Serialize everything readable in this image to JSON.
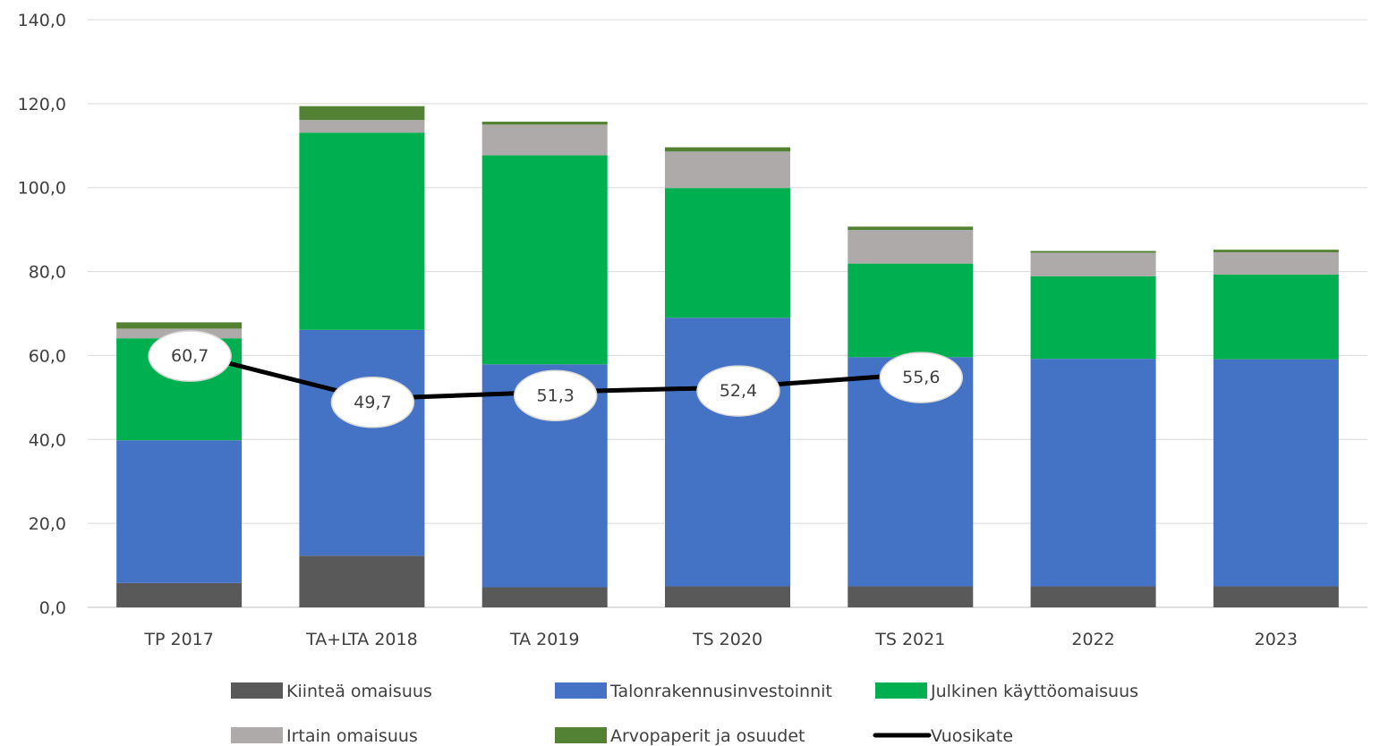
{
  "chart_data": {
    "type": "bar",
    "stacked": true,
    "categories": [
      "TP 2017",
      "TA+LTA 2018",
      "TA 2019",
      "TS 2020",
      "TS 2021",
      "2022",
      "2023"
    ],
    "ylim": [
      0,
      140
    ],
    "yticks": [
      "0,0",
      "20,0",
      "40,0",
      "60,0",
      "80,0",
      "100,0",
      "120,0",
      "140,0"
    ],
    "grid": true,
    "legend_position": "bottom",
    "series": [
      {
        "name": "Kiinteä omaisuus",
        "color": "#595959",
        "values": [
          5.8,
          12.3,
          4.8,
          5.0,
          5.0,
          5.0,
          5.0
        ]
      },
      {
        "name": "Talonrakennusinvestoinnit",
        "color": "#4472c4",
        "values": [
          34.0,
          53.8,
          53.1,
          64.0,
          54.6,
          54.2,
          54.1
        ]
      },
      {
        "name": "Julkinen käyttöomaisuus",
        "color": "#00b050",
        "values": [
          24.3,
          47.0,
          49.8,
          30.9,
          22.3,
          19.7,
          20.2
        ]
      },
      {
        "name": "Irtain omaisuus",
        "color": "#aeaaaa",
        "values": [
          2.3,
          3.0,
          7.3,
          8.7,
          8.0,
          5.6,
          5.3
        ]
      },
      {
        "name": "Arvopaperit ja osuudet",
        "color": "#548235",
        "values": [
          1.5,
          3.3,
          0.7,
          1.0,
          0.8,
          0.4,
          0.6
        ]
      }
    ],
    "line_series": {
      "name": "Vuosikate",
      "color": "#000000",
      "values": [
        60.7,
        49.7,
        51.3,
        52.4,
        55.6,
        null,
        null
      ],
      "labels": [
        "60,7",
        "49,7",
        "51,3",
        "52,4",
        "55,6",
        "",
        ""
      ]
    }
  }
}
